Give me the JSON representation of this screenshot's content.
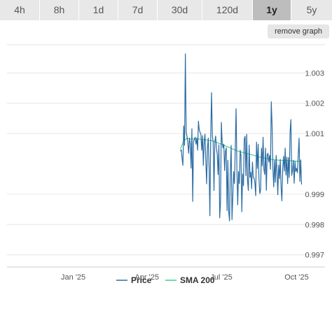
{
  "range_tabs": [
    {
      "label": "4h",
      "active": false
    },
    {
      "label": "8h",
      "active": false
    },
    {
      "label": "1d",
      "active": false
    },
    {
      "label": "7d",
      "active": false
    },
    {
      "label": "30d",
      "active": false
    },
    {
      "label": "120d",
      "active": false
    },
    {
      "label": "1y",
      "active": true
    },
    {
      "label": "5y",
      "active": false
    }
  ],
  "remove_graph_label": "remove graph",
  "colors": {
    "price": "#2b6ca3",
    "sma": "#3fcf8e",
    "grid": "#e6e6e6",
    "tab_bg": "#e8e8e8",
    "tab_active_bg": "#bdbdbd"
  },
  "chart_data": {
    "type": "line",
    "x_axis": {
      "range": [
        "2024-10-12",
        "2025-10-10"
      ],
      "ticks": [
        {
          "date": "2025-01-01",
          "label": "Jan '25"
        },
        {
          "date": "2025-04-01",
          "label": "Apr '25"
        },
        {
          "date": "2025-07-01",
          "label": "Jul '25"
        },
        {
          "date": "2025-10-01",
          "label": "Oct '25"
        }
      ]
    },
    "y_axis": {
      "range": [
        0.9966,
        1.00393
      ],
      "ticks": [
        0.997,
        0.998,
        0.999,
        1.001,
        1.002,
        1.003
      ],
      "grid": true,
      "position": "right"
    },
    "series": [
      {
        "name": "Price",
        "data": [
          [
            "2025-05-12",
            1.00042
          ],
          [
            "2025-05-13",
            1.00047
          ],
          [
            "2025-05-14",
            1.00018
          ],
          [
            "2025-05-15",
            0.99995
          ],
          [
            "2025-05-16",
            1.00125
          ],
          [
            "2025-05-17",
            1.00061
          ],
          [
            "2025-05-18",
            1.00363
          ],
          [
            "2025-05-19",
            1.00103
          ],
          [
            "2025-05-20",
            1.00091
          ],
          [
            "2025-05-21",
            1.0007
          ],
          [
            "2025-05-22",
            1.00035
          ],
          [
            "2025-05-23",
            1.00085
          ],
          [
            "2025-05-24",
            1.00067
          ],
          [
            "2025-05-25",
            0.99986
          ],
          [
            "2025-05-26",
            1.00116
          ],
          [
            "2025-05-27",
            0.99876
          ],
          [
            "2025-05-28",
            1.00073
          ],
          [
            "2025-05-29",
            1.00082
          ],
          [
            "2025-05-30",
            1.00088
          ],
          [
            "2025-05-31",
            1.00065
          ],
          [
            "2025-06-01",
            1.00085
          ],
          [
            "2025-06-02",
            1.00045
          ],
          [
            "2025-06-03",
            1.00141
          ],
          [
            "2025-06-04",
            1.00112
          ],
          [
            "2025-06-05",
            1.00104
          ],
          [
            "2025-06-06",
            1.00098
          ],
          [
            "2025-06-07",
            1.00045
          ],
          [
            "2025-06-08",
            1.00093
          ],
          [
            "2025-06-09",
            0.99995
          ],
          [
            "2025-06-10",
            1.00073
          ],
          [
            "2025-06-11",
            1.00098
          ],
          [
            "2025-06-12",
            1.00012
          ],
          [
            "2025-06-13",
            0.99934
          ],
          [
            "2025-06-14",
            1.00052
          ],
          [
            "2025-06-15",
            1.00085
          ],
          [
            "2025-06-16",
            0.99988
          ],
          [
            "2025-06-17",
            0.99829
          ],
          [
            "2025-06-18",
            1.00091
          ],
          [
            "2025-06-19",
            1.00235
          ],
          [
            "2025-06-20",
            1.00092
          ],
          [
            "2025-06-21",
            1.00073
          ],
          [
            "2025-06-22",
            0.99912
          ],
          [
            "2025-06-23",
            1.00071
          ],
          [
            "2025-06-24",
            1.00092
          ],
          [
            "2025-06-25",
            1.00052
          ],
          [
            "2025-06-26",
            1.00031
          ],
          [
            "2025-06-27",
            0.99965
          ],
          [
            "2025-06-28",
            1.00063
          ],
          [
            "2025-06-29",
            0.99822
          ],
          [
            "2025-06-30",
            0.99877
          ],
          [
            "2025-07-01",
            1.00137
          ],
          [
            "2025-07-02",
            1.00071
          ],
          [
            "2025-07-03",
            1.00053
          ],
          [
            "2025-07-04",
            1.00065
          ],
          [
            "2025-07-05",
            0.99978
          ],
          [
            "2025-07-06",
            1.00041
          ],
          [
            "2025-07-07",
            1.00053
          ],
          [
            "2025-07-08",
            0.99846
          ],
          [
            "2025-07-09",
            1.00012
          ],
          [
            "2025-07-10",
            0.99841
          ],
          [
            "2025-07-11",
            0.99812
          ],
          [
            "2025-07-12",
            0.99979
          ],
          [
            "2025-07-13",
            1.00061
          ],
          [
            "2025-07-14",
            0.99816
          ],
          [
            "2025-07-15",
            0.99891
          ],
          [
            "2025-07-16",
            0.99974
          ],
          [
            "2025-07-17",
            0.99935
          ],
          [
            "2025-07-18",
            1.00051
          ],
          [
            "2025-07-19",
            1.00182
          ],
          [
            "2025-07-20",
            0.99982
          ],
          [
            "2025-07-21",
            0.99865
          ],
          [
            "2025-07-22",
            0.99975
          ],
          [
            "2025-07-23",
            0.99935
          ],
          [
            "2025-07-24",
            1.00045
          ],
          [
            "2025-07-25",
            1.00028
          ],
          [
            "2025-07-26",
            0.99842
          ],
          [
            "2025-07-27",
            0.99967
          ],
          [
            "2025-07-28",
            0.99928
          ],
          [
            "2025-07-29",
            1.00082
          ],
          [
            "2025-07-30",
            1.00091
          ],
          [
            "2025-07-31",
            0.99961
          ],
          [
            "2025-08-01",
            1.00098
          ],
          [
            "2025-08-02",
            0.99945
          ],
          [
            "2025-08-03",
            0.99912
          ],
          [
            "2025-08-04",
            1.00062
          ],
          [
            "2025-08-05",
            0.99956
          ],
          [
            "2025-08-06",
            0.99972
          ],
          [
            "2025-08-07",
            0.99918
          ],
          [
            "2025-08-08",
            1.00006
          ],
          [
            "2025-08-09",
            0.99956
          ],
          [
            "2025-08-10",
            0.99953
          ],
          [
            "2025-08-11",
            0.99938
          ],
          [
            "2025-08-12",
            0.99895
          ],
          [
            "2025-08-13",
            1.00072
          ],
          [
            "2025-08-14",
            0.99985
          ],
          [
            "2025-08-15",
            1.00065
          ],
          [
            "2025-08-16",
            0.99949
          ],
          [
            "2025-08-17",
            0.99902
          ],
          [
            "2025-08-18",
            0.99915
          ],
          [
            "2025-08-19",
            1.00052
          ],
          [
            "2025-08-20",
            0.99993
          ],
          [
            "2025-08-21",
            1.00088
          ],
          [
            "2025-08-22",
            0.99983
          ],
          [
            "2025-08-23",
            0.99965
          ],
          [
            "2025-08-24",
            1.00052
          ],
          [
            "2025-08-25",
            0.99913
          ],
          [
            "2025-08-26",
            1.0003
          ],
          [
            "2025-08-27",
            1.00035
          ],
          [
            "2025-08-28",
            1.00006
          ],
          [
            "2025-08-29",
            1.00028
          ],
          [
            "2025-08-30",
            0.99982
          ],
          [
            "2025-08-31",
            1.00205
          ],
          [
            "2025-09-01",
            1.00128
          ],
          [
            "2025-09-02",
            0.99985
          ],
          [
            "2025-09-03",
            0.99924
          ],
          [
            "2025-09-04",
            1.00012
          ],
          [
            "2025-09-05",
            0.99939
          ],
          [
            "2025-09-06",
            1.00028
          ],
          [
            "2025-09-07",
            0.99973
          ],
          [
            "2025-09-08",
            0.99898
          ],
          [
            "2025-09-09",
            0.99996
          ],
          [
            "2025-09-10",
            0.99951
          ],
          [
            "2025-09-11",
            1.00015
          ],
          [
            "2025-09-12",
            0.99925
          ],
          [
            "2025-09-13",
            0.99878
          ],
          [
            "2025-09-14",
            0.99985
          ],
          [
            "2025-09-15",
            1.00025
          ],
          [
            "2025-09-16",
            0.99976
          ],
          [
            "2025-09-17",
            1.00052
          ],
          [
            "2025-09-18",
            0.99963
          ],
          [
            "2025-09-19",
            1.00022
          ],
          [
            "2025-09-20",
            0.99935
          ],
          [
            "2025-09-21",
            1.00021
          ],
          [
            "2025-09-22",
            0.99955
          ],
          [
            "2025-09-23",
            1.00105
          ],
          [
            "2025-09-24",
            1.00146
          ],
          [
            "2025-09-25",
            0.99962
          ],
          [
            "2025-09-26",
            0.99978
          ],
          [
            "2025-09-27",
            1.00012
          ],
          [
            "2025-09-28",
            0.99936
          ],
          [
            "2025-09-29",
            1.00008
          ],
          [
            "2025-09-30",
            0.99975
          ],
          [
            "2025-10-01",
            0.99985
          ],
          [
            "2025-10-02",
            0.99971
          ],
          [
            "2025-10-03",
            1.00031
          ],
          [
            "2025-10-04",
            1.00085
          ],
          [
            "2025-10-05",
            0.99942
          ],
          [
            "2025-10-06",
            1.00013
          ],
          [
            "2025-10-07",
            0.99932
          ]
        ]
      },
      {
        "name": "SMA 200",
        "data": [
          [
            "2025-05-12",
            1.0005
          ],
          [
            "2025-05-16",
            1.00075
          ],
          [
            "2025-05-20",
            1.00085
          ],
          [
            "2025-05-25",
            1.00082
          ],
          [
            "2025-06-01",
            1.00083
          ],
          [
            "2025-06-10",
            1.0008
          ],
          [
            "2025-06-20",
            1.00076
          ],
          [
            "2025-06-30",
            1.00066
          ],
          [
            "2025-07-10",
            1.00055
          ],
          [
            "2025-07-20",
            1.00043
          ],
          [
            "2025-07-31",
            1.00035
          ],
          [
            "2025-08-10",
            1.00028
          ],
          [
            "2025-08-20",
            1.0002
          ],
          [
            "2025-08-31",
            1.00015
          ],
          [
            "2025-09-10",
            1.00012
          ],
          [
            "2025-09-20",
            1.00011
          ],
          [
            "2025-09-30",
            1.00009
          ],
          [
            "2025-10-07",
            1.00008
          ]
        ]
      }
    ]
  }
}
